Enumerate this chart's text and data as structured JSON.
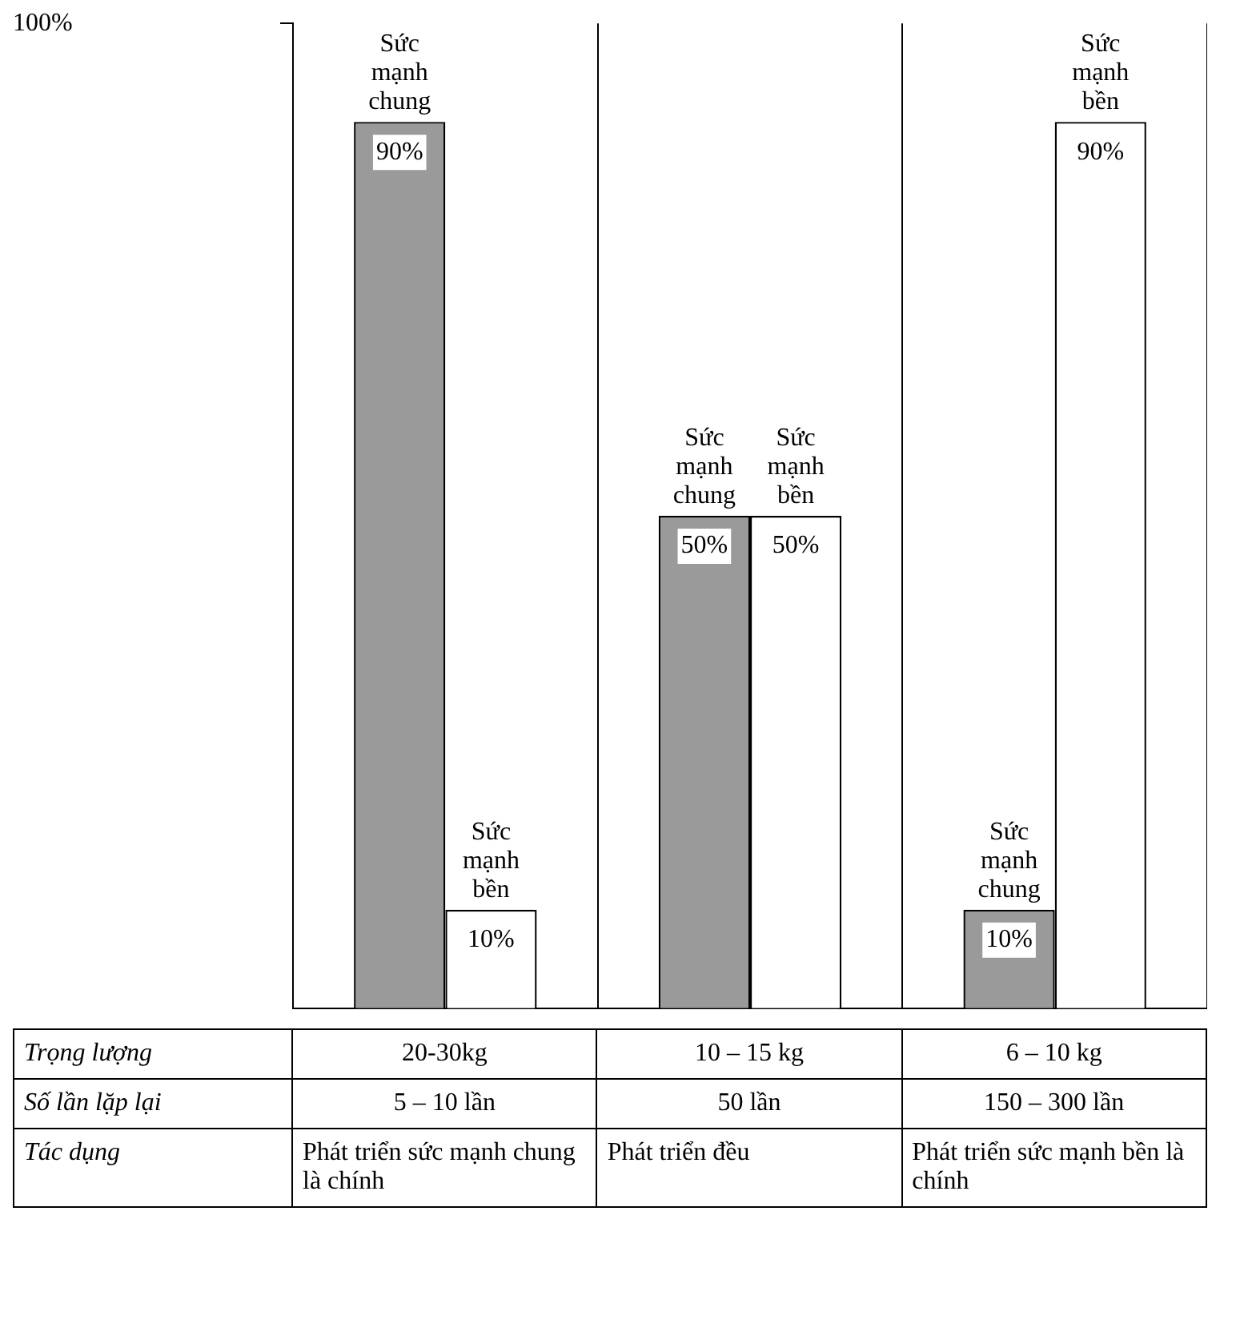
{
  "chart_data": {
    "type": "bar",
    "categories": [
      "20-30kg",
      "10 – 15 kg",
      "6 – 10 kg"
    ],
    "series": [
      {
        "name": "Sức mạnh chung",
        "color": "#9a9a9a",
        "values": [
          90,
          50,
          10
        ],
        "value_labels": [
          "90%",
          "50%",
          "10%"
        ]
      },
      {
        "name": "Sức mạnh bền",
        "color": "#ffffff",
        "values": [
          10,
          50,
          90
        ],
        "value_labels": [
          "10%",
          "50%",
          "90%"
        ]
      }
    ],
    "ylim": [
      0,
      100
    ],
    "yticks": [
      {
        "value": 100,
        "label": "100%"
      }
    ],
    "grid": "x",
    "legend": false,
    "annotations": [
      "Trọng lượng",
      "Số lần lặp lại",
      "5 – 10 lần",
      "50 lần",
      "150 – 300 lần",
      "Tác dụng",
      "Phát triển sức mạnh chung là chính",
      "Phát triển đều",
      "Phát triển sức mạnh bền là chính"
    ]
  }
}
